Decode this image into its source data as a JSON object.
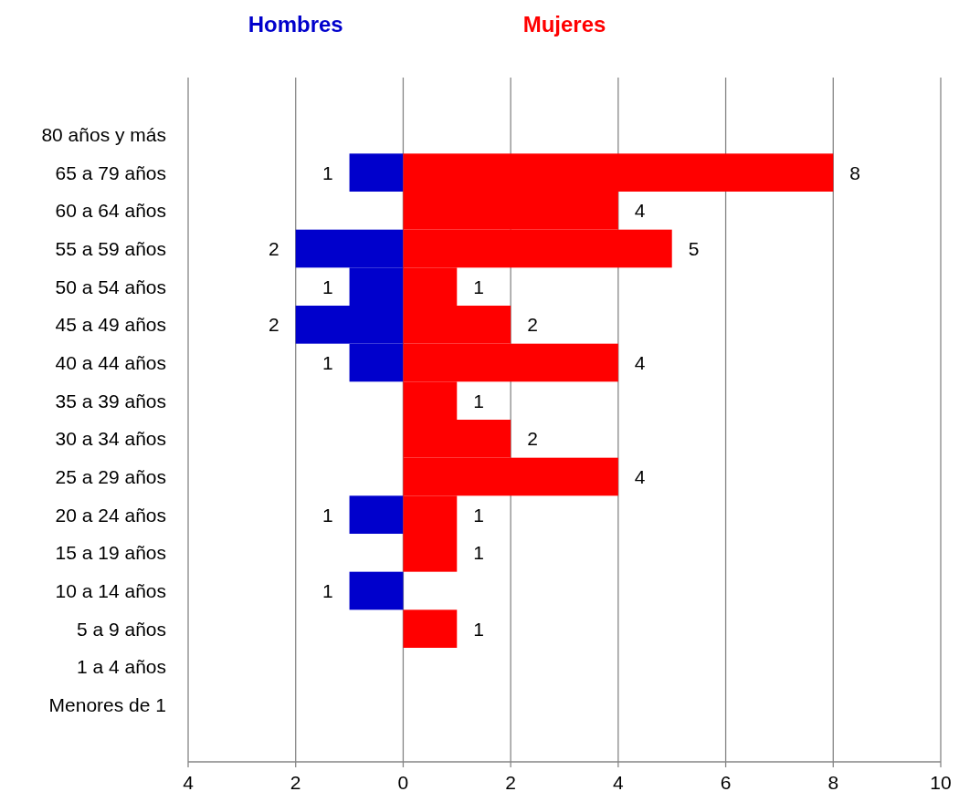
{
  "chart_data": {
    "type": "bar",
    "orientation": "horizontal",
    "categories": [
      "80 años y más",
      "65 a 79 años",
      "60 a 64 años",
      "55 a 59 años",
      "50 a 54 años",
      "45 a 49 años",
      "40 a 44 años",
      "35 a 39 años",
      "30 a 34 años",
      "25 a 29 años",
      "20 a 24 años",
      "15 a 19 años",
      "10 a 14 años",
      "5 a 9 años",
      "1 a 4 años",
      "Menores de 1"
    ],
    "series": [
      {
        "name": "Hombres",
        "color": "#0000cc",
        "values": [
          0,
          1,
          0,
          2,
          1,
          2,
          1,
          0,
          0,
          0,
          1,
          0,
          1,
          0,
          0,
          0
        ],
        "base": [
          null,
          -1,
          null,
          -2,
          -1,
          -2,
          -1,
          null,
          null,
          null,
          -1,
          null,
          -1,
          null,
          null,
          null
        ],
        "value_labels": [
          null,
          "1",
          null,
          "2",
          "1",
          "2",
          "1",
          null,
          null,
          null,
          "1",
          null,
          "1",
          null,
          null,
          null
        ]
      },
      {
        "name": "Mujeres",
        "color": "#ff0000",
        "values": [
          0,
          8,
          4,
          5,
          1,
          2,
          4,
          1,
          2,
          4,
          1,
          1,
          0,
          1,
          0,
          0
        ],
        "value_labels": [
          null,
          "8",
          "4",
          "5",
          "1",
          "2",
          "4",
          "1",
          "2",
          "4",
          "1",
          "1",
          null,
          "1",
          null,
          null
        ]
      }
    ],
    "xlim": [
      -4,
      10
    ],
    "xticks": [
      {
        "value": -4,
        "label": "4"
      },
      {
        "value": -2,
        "label": "2"
      },
      0,
      2,
      4,
      6,
      8,
      10
    ],
    "grid": "x",
    "legend": "top"
  }
}
